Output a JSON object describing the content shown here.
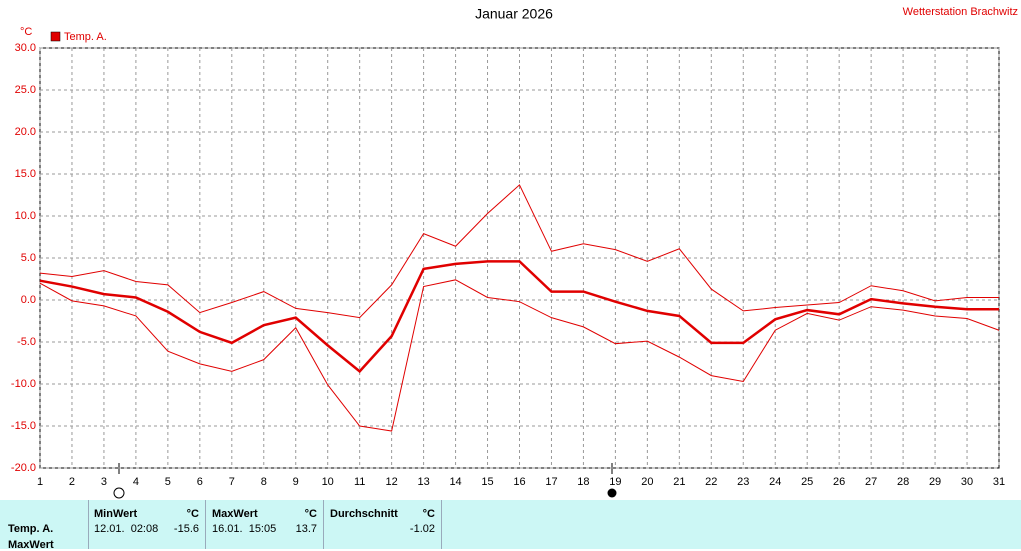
{
  "chart_data": {
    "type": "line",
    "title": "Januar 2026",
    "station": "Wetterstation Brachwitz",
    "y_unit": "°C",
    "x": [
      1,
      2,
      3,
      4,
      5,
      6,
      7,
      8,
      9,
      10,
      11,
      12,
      13,
      14,
      15,
      16,
      17,
      18,
      19,
      20,
      21,
      22,
      23,
      24,
      25,
      26,
      27,
      28,
      29,
      30,
      31
    ],
    "series": [
      {
        "name": "Temp. A.",
        "color": "#e00000",
        "values": [
          2.3,
          1.6,
          0.7,
          0.3,
          -1.4,
          -3.8,
          -5.1,
          -3.0,
          -2.1,
          -5.4,
          -8.5,
          -4.3,
          3.7,
          4.3,
          4.6,
          4.6,
          1.0,
          1.0,
          -0.2,
          -1.3,
          -1.9,
          -5.1,
          -5.1,
          -2.3,
          -1.2,
          -1.7,
          0.1,
          -0.4,
          -0.8,
          -1.1,
          -1.1
        ],
        "max": [
          3.2,
          2.8,
          3.5,
          2.2,
          1.8,
          -1.5,
          -0.3,
          1.0,
          -1.0,
          -1.5,
          -2.1,
          1.8,
          7.9,
          6.4,
          10.3,
          13.7,
          5.8,
          6.7,
          6.0,
          4.6,
          6.1,
          1.3,
          -1.3,
          -0.9,
          -0.6,
          -0.3,
          1.7,
          1.1,
          -0.1,
          0.3,
          0.3
        ],
        "min": [
          2.0,
          -0.1,
          -0.7,
          -1.9,
          -6.1,
          -7.6,
          -8.5,
          -7.1,
          -3.3,
          -10.1,
          -15.0,
          -15.6,
          1.6,
          2.4,
          0.3,
          -0.2,
          -2.1,
          -3.2,
          -5.2,
          -4.9,
          -6.8,
          -9.0,
          -9.7,
          -3.6,
          -1.6,
          -2.4,
          -0.8,
          -1.2,
          -1.9,
          -2.2,
          -3.6
        ]
      }
    ],
    "xlim": [
      1,
      31
    ],
    "xticks": [
      1,
      2,
      3,
      4,
      5,
      6,
      7,
      8,
      9,
      10,
      11,
      12,
      13,
      14,
      15,
      16,
      17,
      18,
      19,
      20,
      21,
      22,
      23,
      24,
      25,
      26,
      27,
      28,
      29,
      30,
      31
    ],
    "ylim": [
      -20,
      30
    ],
    "yticks": [
      {
        "value": 30,
        "label": "30.0"
      },
      {
        "value": 25,
        "label": "25.0"
      },
      {
        "value": 20,
        "label": "20.0"
      },
      {
        "value": 15,
        "label": "15.0"
      },
      {
        "value": 10,
        "label": "10.0"
      },
      {
        "value": 5,
        "label": "5.0"
      },
      {
        "value": 0,
        "label": "0.0"
      },
      {
        "value": -5,
        "label": "-5.0"
      },
      {
        "value": -10,
        "label": "-10.0"
      },
      {
        "value": -15,
        "label": "-15.0"
      },
      {
        "value": -20,
        "label": "-20.0"
      }
    ],
    "grid": true
  },
  "summary_table": {
    "row_labels": [
      "Temp. A.",
      "MaxWert"
    ],
    "headers": [
      "MinWert",
      "°C",
      "MaxWert",
      "°C",
      "Durchschnitt",
      "°C"
    ],
    "row": [
      "12.01.  02:08",
      "-15.6",
      "16.01.  15:05",
      "13.7",
      "-1.02"
    ]
  }
}
